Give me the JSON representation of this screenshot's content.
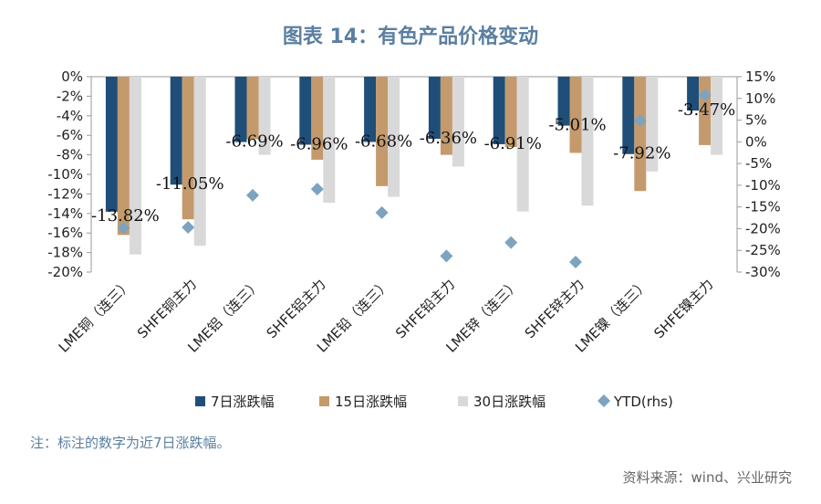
{
  "title": "图表 14：有色产品价格变动",
  "note": "注：标注的数字为近7日涨跌幅。",
  "source": "资料来源：wind、兴业研究",
  "colors": {
    "d7": "#1f4e79",
    "d15": "#c49a6c",
    "d30": "#d9d9d9",
    "ytd": "#7da3bf",
    "axis": "#9a9a9a"
  },
  "chart_data": {
    "type": "bar",
    "categories": [
      "LME铜（连三）",
      "SHFE铜主力",
      "LME铝（连三）",
      "SHFE铝主力",
      "LME铅（连三）",
      "SHFE铅主力",
      "LME锌（连三）",
      "SHFE锌主力",
      "LME镍（连三）",
      "SHFE镍主力"
    ],
    "series": [
      {
        "name": "7日涨跌幅",
        "values": [
          -13.82,
          -11.05,
          -6.69,
          -6.96,
          -6.68,
          -6.36,
          -6.91,
          -5.01,
          -7.92,
          -3.47
        ]
      },
      {
        "name": "15日涨跌幅",
        "values": [
          -16.2,
          -14.6,
          -6.4,
          -8.5,
          -11.2,
          -8.0,
          -7.2,
          -7.8,
          -11.7,
          -7.0
        ]
      },
      {
        "name": "30日涨跌幅",
        "values": [
          -18.2,
          -17.3,
          -8.0,
          -12.9,
          -12.3,
          -9.2,
          -13.8,
          -13.2,
          -9.7,
          -8.0
        ]
      }
    ],
    "secondary_series": {
      "name": "YTD(rhs)",
      "type": "scatter",
      "marker": "diamond",
      "values": [
        -19.8,
        -19.7,
        -12.3,
        -10.9,
        -16.3,
        -26.3,
        -23.2,
        -27.7,
        4.9,
        10.8
      ]
    },
    "data_labels": [
      "-13.82%",
      "-11.05%",
      "-6.69%",
      "-6.96%",
      "-6.68%",
      "-6.36%",
      "-6.91%",
      "-5.01%",
      "-7.92%",
      "-3.47%"
    ],
    "y_left": {
      "min": -20,
      "max": 0,
      "step": 2,
      "ticks": [
        "0%",
        "-2%",
        "-4%",
        "-6%",
        "-8%",
        "-10%",
        "-12%",
        "-14%",
        "-16%",
        "-18%",
        "-20%"
      ]
    },
    "y_right": {
      "min": -30,
      "max": 15,
      "step": 5,
      "ticks": [
        "15%",
        "10%",
        "5%",
        "0%",
        "-5%",
        "-10%",
        "-15%",
        "-20%",
        "-25%",
        "-30%"
      ]
    },
    "legend": {
      "position": "bottom",
      "items": [
        "7日涨跌幅",
        "15日涨跌幅",
        "30日涨跌幅",
        "YTD(rhs)"
      ]
    },
    "grid": false
  }
}
